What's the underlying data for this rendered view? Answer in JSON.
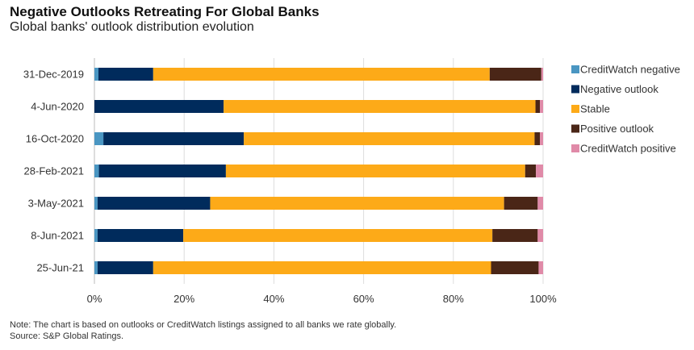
{
  "title": "Negative Outlooks Retreating For Global Banks",
  "subtitle": "Global banks' outlook distribution evolution",
  "note": "Note: The chart is based on outlooks or CreditWatch listings assigned to all banks we rate globally.",
  "source": "Source: S&P Global Ratings.",
  "chart_data": {
    "type": "bar",
    "orientation": "horizontal",
    "stacked": true,
    "title": "Negative Outlooks Retreating For Global Banks",
    "subtitle": "Global banks' outlook distribution evolution",
    "xlabel": "",
    "ylabel": "",
    "xlim": [
      0,
      100
    ],
    "x_ticks": [
      "0%",
      "20%",
      "40%",
      "60%",
      "80%",
      "100%"
    ],
    "grid": true,
    "legend_position": "right",
    "categories": [
      "31-Dec-2019",
      "4-Jun-2020",
      "16-Oct-2020",
      "28-Feb-2021",
      "3-May-2021",
      "8-Jun-2021",
      "25-Jun-21"
    ],
    "series": [
      {
        "name": "CreditWatch negative",
        "color": "#4a96c2",
        "values": [
          0.9,
          0,
          2.0,
          1.0,
          0.7,
          0.7,
          0.7
        ]
      },
      {
        "name": "Negative outlook",
        "color": "#002b5c",
        "values": [
          12.2,
          28.8,
          31.3,
          28.3,
          25.1,
          19.1,
          12.4
        ]
      },
      {
        "name": "Stable",
        "color": "#fdaa18",
        "values": [
          75.0,
          69.5,
          64.8,
          66.7,
          65.5,
          68.9,
          75.3
        ]
      },
      {
        "name": "Positive outlook",
        "color": "#4a2617",
        "values": [
          11.5,
          1.0,
          1.2,
          2.4,
          7.5,
          10.1,
          10.6
        ]
      },
      {
        "name": "CreditWatch positive",
        "color": "#e08aa8",
        "values": [
          0.4,
          0.7,
          0.7,
          1.6,
          1.2,
          1.2,
          1.0
        ]
      }
    ]
  }
}
